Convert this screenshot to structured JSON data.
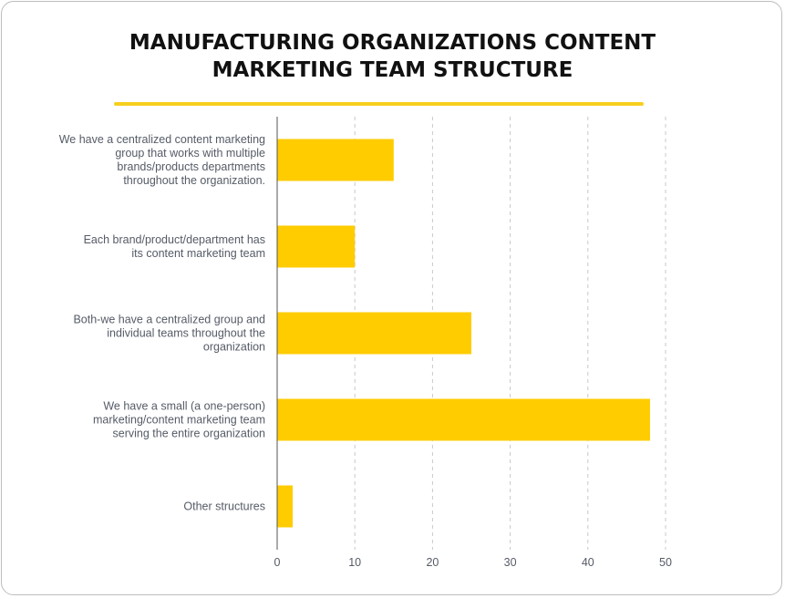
{
  "chart_data": {
    "type": "bar",
    "orientation": "horizontal",
    "title_lines": [
      "MANUFACTURING ORGANIZATIONS CONTENT",
      "MARKETING TEAM STRUCTURE"
    ],
    "categories": [
      [
        "We have a centralized content marketing",
        "group that works with multiple",
        "brands/products departments",
        "throughout the organization."
      ],
      [
        "Each brand/product/department has",
        "its content marketing team"
      ],
      [
        "Both-we have a centralized group and",
        "individual teams throughout the",
        "organization"
      ],
      [
        "We have a small (a one-person)",
        "marketing/content marketing team",
        "serving the entire organization"
      ],
      [
        "Other structures"
      ]
    ],
    "values": [
      15,
      10,
      25,
      48,
      2
    ],
    "xlim": [
      0,
      50
    ],
    "xticks": [
      "0",
      "10",
      "20",
      "30",
      "40",
      "50"
    ],
    "grid": true,
    "xlabel": "",
    "ylabel": ""
  },
  "colors": {
    "bar": "#FFCC00",
    "accent_line": "#F7CF1D",
    "grid": "#c8c8c8",
    "axis": "#555555"
  }
}
